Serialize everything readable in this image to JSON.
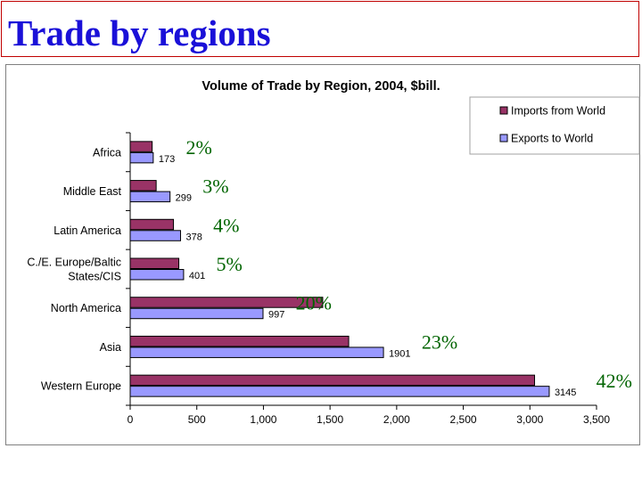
{
  "slide": {
    "title": "Trade by regions"
  },
  "chart_data": {
    "type": "bar",
    "orientation": "horizontal",
    "title": "Volume of Trade by Region, 2004, $bill.",
    "categories": [
      "Africa",
      "Middle East",
      "Latin America",
      "C./E. Europe/Baltic States/CIS",
      "North America",
      "Asia",
      "Western Europe"
    ],
    "category_lines": [
      [
        "Africa"
      ],
      [
        "Middle East"
      ],
      [
        "Latin America"
      ],
      [
        "C./E. Europe/Baltic",
        "States/CIS"
      ],
      [
        "North America"
      ],
      [
        "Asia"
      ],
      [
        "Western Europe"
      ]
    ],
    "series": [
      {
        "name": "Imports from World",
        "color": "#993366",
        "values": [
          165,
          195,
          325,
          365,
          1445,
          1640,
          3035
        ]
      },
      {
        "name": "Exports to World",
        "color": "#9999ff",
        "values": [
          173,
          299,
          378,
          401,
          997,
          1901,
          3145
        ]
      }
    ],
    "data_labels": [
      "173",
      "299",
      "378",
      "401",
      "997",
      "1901",
      "3145"
    ],
    "share_labels": [
      "2%",
      "3%",
      "4%",
      "5%",
      "20%",
      "23%",
      "42%"
    ],
    "share_color": "#006400",
    "xlim": [
      0,
      3500
    ],
    "xticks": [
      0,
      500,
      1000,
      1500,
      2000,
      2500,
      3000,
      3500
    ],
    "xtick_labels": [
      "0",
      "500",
      "1,000",
      "1,500",
      "2,000",
      "2,500",
      "3,000",
      "3,500"
    ],
    "grid": false,
    "legend_position": "top-right"
  }
}
